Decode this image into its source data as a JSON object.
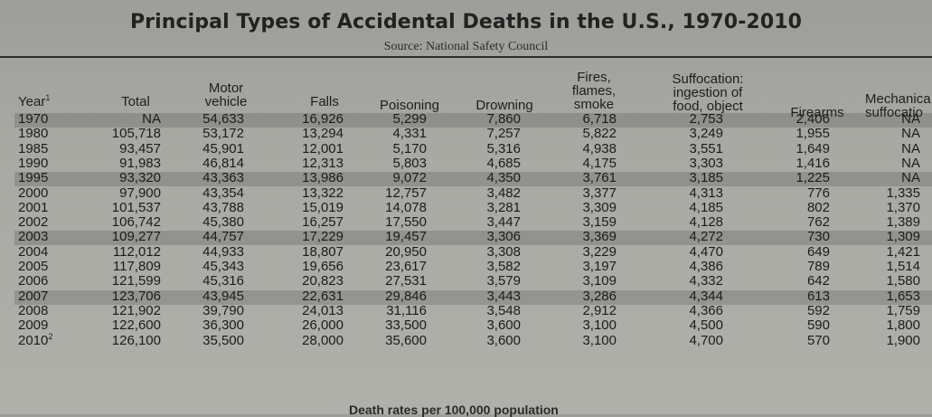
{
  "title": "Principal Types of Accidental Deaths in the U.S., 1970-2010",
  "source": "Source: National Safety Council",
  "headers": {
    "year": "Year",
    "year_note": "1",
    "total": "Total",
    "motor_1": "Motor",
    "motor_2": "vehicle",
    "falls": "Falls",
    "poisoning": "Poisoning",
    "drowning": "Drowning",
    "fires_1": "Fires,",
    "fires_2": "flames,",
    "fires_3": "smoke",
    "suff_1": "Suffocation:",
    "suff_2": "ingestion of",
    "suff_3": "food, object",
    "firearms": "Firearms",
    "mech_1": "Mechanica",
    "mech_2": "suffocatio"
  },
  "rows": [
    {
      "year": "1970",
      "note": "",
      "total": "NA",
      "motor": "54,633",
      "falls": "16,926",
      "poison": "5,299",
      "drown": "7,860",
      "fires": "6,718",
      "suff": "2,753",
      "firearms": "2,406",
      "mech": "NA",
      "shaded": true
    },
    {
      "year": "1980",
      "note": "",
      "total": "105,718",
      "motor": "53,172",
      "falls": "13,294",
      "poison": "4,331",
      "drown": "7,257",
      "fires": "5,822",
      "suff": "3,249",
      "firearms": "1,955",
      "mech": "NA",
      "shaded": false
    },
    {
      "year": "1985",
      "note": "",
      "total": "93,457",
      "motor": "45,901",
      "falls": "12,001",
      "poison": "5,170",
      "drown": "5,316",
      "fires": "4,938",
      "suff": "3,551",
      "firearms": "1,649",
      "mech": "NA",
      "shaded": false
    },
    {
      "year": "1990",
      "note": "",
      "total": "91,983",
      "motor": "46,814",
      "falls": "12,313",
      "poison": "5,803",
      "drown": "4,685",
      "fires": "4,175",
      "suff": "3,303",
      "firearms": "1,416",
      "mech": "NA",
      "shaded": false
    },
    {
      "year": "1995",
      "note": "",
      "total": "93,320",
      "motor": "43,363",
      "falls": "13,986",
      "poison": "9,072",
      "drown": "4,350",
      "fires": "3,761",
      "suff": "3,185",
      "firearms": "1,225",
      "mech": "NA",
      "shaded": true
    },
    {
      "year": "2000",
      "note": "",
      "total": "97,900",
      "motor": "43,354",
      "falls": "13,322",
      "poison": "12,757",
      "drown": "3,482",
      "fires": "3,377",
      "suff": "4,313",
      "firearms": "776",
      "mech": "1,335",
      "shaded": false
    },
    {
      "year": "2001",
      "note": "",
      "total": "101,537",
      "motor": "43,788",
      "falls": "15,019",
      "poison": "14,078",
      "drown": "3,281",
      "fires": "3,309",
      "suff": "4,185",
      "firearms": "802",
      "mech": "1,370",
      "shaded": false
    },
    {
      "year": "2002",
      "note": "",
      "total": "106,742",
      "motor": "45,380",
      "falls": "16,257",
      "poison": "17,550",
      "drown": "3,447",
      "fires": "3,159",
      "suff": "4,128",
      "firearms": "762",
      "mech": "1,389",
      "shaded": false
    },
    {
      "year": "2003",
      "note": "",
      "total": "109,277",
      "motor": "44,757",
      "falls": "17,229",
      "poison": "19,457",
      "drown": "3,306",
      "fires": "3,369",
      "suff": "4,272",
      "firearms": "730",
      "mech": "1,309",
      "shaded": true
    },
    {
      "year": "2004",
      "note": "",
      "total": "112,012",
      "motor": "44,933",
      "falls": "18,807",
      "poison": "20,950",
      "drown": "3,308",
      "fires": "3,229",
      "suff": "4,470",
      "firearms": "649",
      "mech": "1,421",
      "shaded": false
    },
    {
      "year": "2005",
      "note": "",
      "total": "117,809",
      "motor": "45,343",
      "falls": "19,656",
      "poison": "23,617",
      "drown": "3,582",
      "fires": "3,197",
      "suff": "4,386",
      "firearms": "789",
      "mech": "1,514",
      "shaded": false
    },
    {
      "year": "2006",
      "note": "",
      "total": "121,599",
      "motor": "45,316",
      "falls": "20,823",
      "poison": "27,531",
      "drown": "3,579",
      "fires": "3,109",
      "suff": "4,332",
      "firearms": "642",
      "mech": "1,580",
      "shaded": false
    },
    {
      "year": "2007",
      "note": "",
      "total": "123,706",
      "motor": "43,945",
      "falls": "22,631",
      "poison": "29,846",
      "drown": "3,443",
      "fires": "3,286",
      "suff": "4,344",
      "firearms": "613",
      "mech": "1,653",
      "shaded": true
    },
    {
      "year": "2008",
      "note": "",
      "total": "121,902",
      "motor": "39,790",
      "falls": "24,013",
      "poison": "31,116",
      "drown": "3,548",
      "fires": "2,912",
      "suff": "4,366",
      "firearms": "592",
      "mech": "1,759",
      "shaded": false
    },
    {
      "year": "2009",
      "note": "",
      "total": "122,600",
      "motor": "36,300",
      "falls": "26,000",
      "poison": "33,500",
      "drown": "3,600",
      "fires": "3,100",
      "suff": "4,500",
      "firearms": "590",
      "mech": "1,800",
      "shaded": false
    },
    {
      "year": "2010",
      "note": "2",
      "total": "126,100",
      "motor": "35,500",
      "falls": "28,000",
      "poison": "35,600",
      "drown": "3,600",
      "fires": "3,100",
      "suff": "4,700",
      "firearms": "570",
      "mech": "1,900",
      "shaded": false
    }
  ],
  "footer": "Death rates per 100,000 population"
}
